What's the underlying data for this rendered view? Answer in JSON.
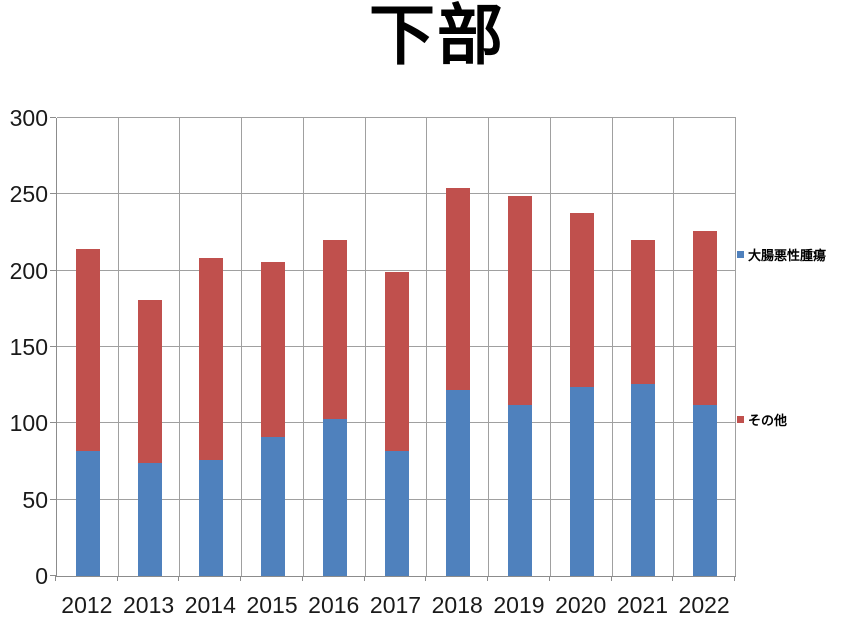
{
  "title": "下部",
  "colors": {
    "series1": "#4F81BD",
    "series2": "#C0504D",
    "gridline": "#a0a0a0",
    "axis": "#8c8c8c",
    "text": "#1a1a1a"
  },
  "legend": {
    "items": [
      {
        "label": "大腸悪性腫瘍",
        "color": "#4F81BD"
      },
      {
        "label": "その他",
        "color": "#C0504D"
      }
    ]
  },
  "chart_data": {
    "type": "bar",
    "stacked": true,
    "title": "下部",
    "categories": [
      "2012",
      "2013",
      "2014",
      "2015",
      "2016",
      "2017",
      "2018",
      "2019",
      "2020",
      "2021",
      "2022"
    ],
    "series": [
      {
        "name": "大腸悪性腫瘍",
        "color": "#4F81BD",
        "values": [
          82,
          74,
          76,
          91,
          103,
          82,
          122,
          112,
          124,
          126,
          112
        ]
      },
      {
        "name": "その他",
        "color": "#C0504D",
        "values": [
          132,
          107,
          132,
          115,
          117,
          117,
          132,
          137,
          114,
          94,
          114
        ]
      }
    ],
    "totals": [
      214,
      181,
      208,
      206,
      220,
      199,
      254,
      249,
      238,
      220,
      226
    ],
    "xlabel": "",
    "ylabel": "",
    "ylim": [
      0,
      300
    ],
    "yticks": [
      0,
      50,
      100,
      150,
      200,
      250,
      300
    ],
    "grid": true,
    "legend_position": "right"
  }
}
